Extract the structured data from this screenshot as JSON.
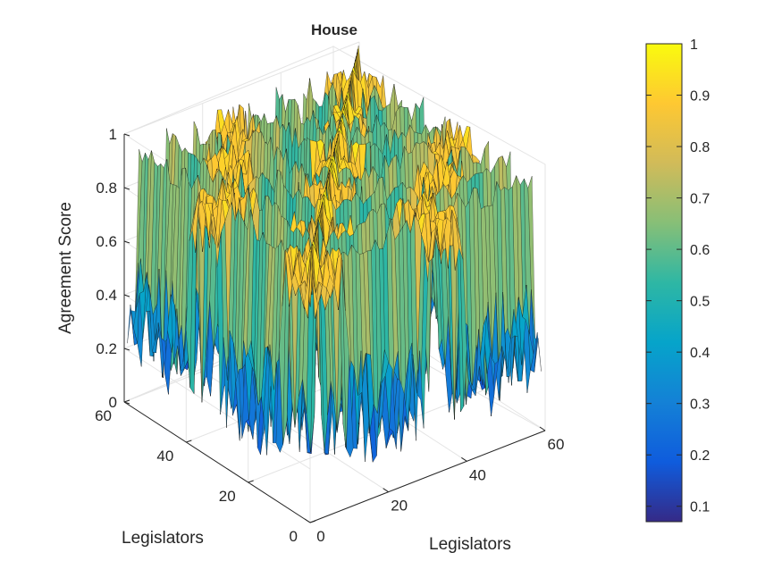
{
  "chart_data": {
    "type": "surface3d",
    "title": "House",
    "xlabel": "Legislators",
    "ylabel": "Legislators",
    "zlabel": "Agreement Score",
    "xlim": [
      0,
      60
    ],
    "ylim": [
      0,
      60
    ],
    "zlim": [
      0,
      1
    ],
    "x_ticks": [
      "0",
      "20",
      "40",
      "60"
    ],
    "y_ticks": [
      "0",
      "20",
      "40",
      "60"
    ],
    "z_ticks": [
      "0",
      "0.2",
      "0.4",
      "0.6",
      "0.8",
      "1"
    ],
    "grid": true,
    "colormap": "parula",
    "colorbar": {
      "limits": [
        0.07,
        1
      ],
      "ticks": [
        "0.1",
        "0.2",
        "0.3",
        "0.4",
        "0.5",
        "0.6",
        "0.7",
        "0.8",
        "0.9",
        "1"
      ]
    },
    "n_legislators": 60,
    "pattern": "block agreement matrix, diagonal = 1, blocks of high agreement separated by low-agreement rows/columns"
  },
  "colors": {
    "parula": [
      "#352a87",
      "#0f5cdd",
      "#1481d6",
      "#06a4ca",
      "#2eb7a4",
      "#87bf77",
      "#d1bb59",
      "#fec832",
      "#f9fb0e"
    ]
  }
}
